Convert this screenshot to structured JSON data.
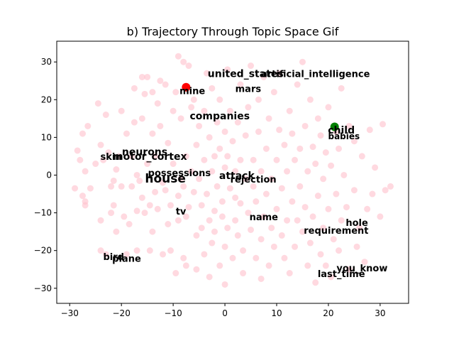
{
  "chart_data": {
    "type": "scatter",
    "title": "b) Trajectory Through Topic Space Gif",
    "xlabel": "",
    "ylabel": "",
    "xlim": [
      -32.5,
      35.5
    ],
    "ylim": [
      -34,
      35.5
    ],
    "xticks": [
      -30,
      -20,
      -10,
      0,
      10,
      20,
      30
    ],
    "yticks": [
      -30,
      -20,
      -10,
      0,
      10,
      20,
      30
    ],
    "grid": false,
    "colors": {
      "background_points": "#ffc0cb",
      "start_marker": "#ff0000",
      "end_marker": "#008000"
    },
    "background_points": [
      [
        -29.0,
        -3.5
      ],
      [
        -28.5,
        6.5
      ],
      [
        -28.0,
        4.0
      ],
      [
        -27.5,
        -5.5
      ],
      [
        -27.5,
        11.0
      ],
      [
        -27.0,
        1.0
      ],
      [
        -27.0,
        -7.0
      ],
      [
        -27.0,
        -8.0
      ],
      [
        -26.5,
        13.0
      ],
      [
        -26.0,
        -3.5
      ],
      [
        -25.0,
        3.0
      ],
      [
        -24.5,
        19.0
      ],
      [
        -24.0,
        -12.0
      ],
      [
        -24.0,
        8.0
      ],
      [
        -24.0,
        -20.0
      ],
      [
        -23.5,
        4.0
      ],
      [
        -23.0,
        16.0
      ],
      [
        -23.0,
        -21.0
      ],
      [
        -22.5,
        6.0
      ],
      [
        -22.0,
        -3.0
      ],
      [
        -22.0,
        -10.0
      ],
      [
        -21.5,
        -8.0
      ],
      [
        -21.5,
        -1.5
      ],
      [
        -21.0,
        -15.0
      ],
      [
        -21.0,
        1.5
      ],
      [
        -20.5,
        5.0
      ],
      [
        -20.0,
        17.0
      ],
      [
        -20.0,
        -3.0
      ],
      [
        -19.5,
        -11.0
      ],
      [
        -19.0,
        11.0
      ],
      [
        -19.0,
        -21.0
      ],
      [
        -18.5,
        -13.0
      ],
      [
        -18.0,
        -3.0
      ],
      [
        -18.0,
        5.0
      ],
      [
        -17.5,
        23.0
      ],
      [
        -17.5,
        14.0
      ],
      [
        -17.0,
        0.0
      ],
      [
        -17.0,
        -9.5
      ],
      [
        -17.0,
        -20.0
      ],
      [
        -16.5,
        -1.5
      ],
      [
        -16.0,
        26.0
      ],
      [
        -16.0,
        -6.0
      ],
      [
        -16.0,
        15.0
      ],
      [
        -15.5,
        21.5
      ],
      [
        -15.5,
        -10.0
      ],
      [
        -15.0,
        3.0
      ],
      [
        -15.0,
        26.0
      ],
      [
        -14.5,
        -8.0
      ],
      [
        -14.5,
        -20.0
      ],
      [
        -14.0,
        22.0
      ],
      [
        -14.0,
        11.0
      ],
      [
        -14.0,
        -15.0
      ],
      [
        -13.5,
        -4.5
      ],
      [
        -13.5,
        5.0
      ],
      [
        -13.0,
        19.0
      ],
      [
        -13.0,
        -9.0
      ],
      [
        -12.5,
        25.0
      ],
      [
        -12.5,
        13.0
      ],
      [
        -12.0,
        -2.0
      ],
      [
        -12.0,
        -21.0
      ],
      [
        -11.5,
        -4.0
      ],
      [
        -11.5,
        24.0
      ],
      [
        -11.0,
        8.5
      ],
      [
        -11.0,
        -13.0
      ],
      [
        -10.5,
        -20.0
      ],
      [
        -10.5,
        -8.0
      ],
      [
        -10.0,
        17.0
      ],
      [
        -10.0,
        3.0
      ],
      [
        -9.5,
        -26.0
      ],
      [
        -9.5,
        22.0
      ],
      [
        -9.0,
        -5.5
      ],
      [
        -9.0,
        -12.0
      ],
      [
        -9.0,
        31.5
      ],
      [
        -8.5,
        -1.0
      ],
      [
        -8.5,
        15.0
      ],
      [
        -8.0,
        30.0
      ],
      [
        -8.0,
        -3.0
      ],
      [
        -8.0,
        -22.0
      ],
      [
        -7.5,
        -11.0
      ],
      [
        -7.5,
        5.0
      ],
      [
        -7.5,
        -24.0
      ],
      [
        -7.0,
        29.0
      ],
      [
        -7.0,
        -8.5
      ],
      [
        -6.5,
        1.0
      ],
      [
        -6.5,
        18.0
      ],
      [
        -6.0,
        -4.5
      ],
      [
        -6.0,
        20.0
      ],
      [
        -5.5,
        -16.0
      ],
      [
        -5.5,
        8.0
      ],
      [
        -5.5,
        -25.0
      ],
      [
        -5.0,
        -1.0
      ],
      [
        -5.0,
        13.0
      ],
      [
        -4.5,
        -14.0
      ],
      [
        -4.5,
        -8.0
      ],
      [
        -4.0,
        4.0
      ],
      [
        -4.0,
        17.0
      ],
      [
        -4.0,
        -21.0
      ],
      [
        -3.5,
        27.0
      ],
      [
        -3.5,
        -5.0
      ],
      [
        -3.0,
        10.0
      ],
      [
        -3.0,
        -12.0
      ],
      [
        -3.0,
        -27.0
      ],
      [
        -2.5,
        1.0
      ],
      [
        -2.5,
        23.0
      ],
      [
        -2.5,
        -18.0
      ],
      [
        -2.0,
        -9.5
      ],
      [
        -2.0,
        5.0
      ],
      [
        -2.0,
        -15.0
      ],
      [
        -1.5,
        14.0
      ],
      [
        -1.5,
        -3.0
      ],
      [
        -1.0,
        7.0
      ],
      [
        -1.0,
        -24.0
      ],
      [
        -1.0,
        20.0
      ],
      [
        -0.5,
        -7.0
      ],
      [
        -0.5,
        -11.0
      ],
      [
        0.0,
        2.0
      ],
      [
        0.0,
        11.5
      ],
      [
        0.0,
        -19.0
      ],
      [
        0.0,
        -29.0
      ],
      [
        0.5,
        5.0
      ],
      [
        0.5,
        28.0
      ],
      [
        0.5,
        -14.0
      ],
      [
        1.0,
        -3.5
      ],
      [
        1.0,
        17.0
      ],
      [
        1.5,
        9.0
      ],
      [
        1.5,
        -22.0
      ],
      [
        2.0,
        -6.0
      ],
      [
        2.0,
        1.0
      ],
      [
        2.0,
        -12.0
      ],
      [
        2.5,
        14.0
      ],
      [
        2.5,
        -16.0
      ],
      [
        3.0,
        -7.5
      ],
      [
        3.0,
        24.0
      ],
      [
        3.0,
        4.0
      ],
      [
        3.5,
        -26.0
      ],
      [
        3.5,
        -20.0
      ],
      [
        4.0,
        -1.0
      ],
      [
        4.0,
        10.5
      ],
      [
        4.5,
        -10.0
      ],
      [
        4.5,
        18.0
      ],
      [
        5.0,
        -14.5
      ],
      [
        5.0,
        29.0
      ],
      [
        5.5,
        4.0
      ],
      [
        5.5,
        -3.0
      ],
      [
        6.0,
        -22.0
      ],
      [
        6.0,
        -7.0
      ],
      [
        6.5,
        11.5
      ],
      [
        6.5,
        20.0
      ],
      [
        7.0,
        1.0
      ],
      [
        7.0,
        -17.0
      ],
      [
        7.0,
        -27.5
      ],
      [
        7.5,
        26.0
      ],
      [
        7.5,
        -11.0
      ],
      [
        8.0,
        7.0
      ],
      [
        8.0,
        -5.0
      ],
      [
        8.5,
        15.0
      ],
      [
        8.5,
        -24.0
      ],
      [
        9.0,
        -1.0
      ],
      [
        9.0,
        -14.0
      ],
      [
        9.5,
        22.0
      ],
      [
        9.5,
        -19.0
      ],
      [
        10.0,
        4.0
      ],
      [
        10.0,
        -9.0
      ],
      [
        10.5,
        12.0
      ],
      [
        10.5,
        27.0
      ],
      [
        11.0,
        -3.5
      ],
      [
        11.0,
        -16.0
      ],
      [
        11.5,
        8.0
      ],
      [
        11.5,
        -22.0
      ],
      [
        12.0,
        -12.0
      ],
      [
        12.0,
        1.0
      ],
      [
        12.5,
        17.0
      ],
      [
        12.5,
        -26.0
      ],
      [
        13.0,
        -7.0
      ],
      [
        13.0,
        11.0
      ],
      [
        13.5,
        4.0
      ],
      [
        13.5,
        -19.0
      ],
      [
        14.0,
        -12.0
      ],
      [
        14.0,
        24.0
      ],
      [
        14.5,
        7.0
      ],
      [
        14.5,
        -3.0
      ],
      [
        15.0,
        30.0
      ],
      [
        15.0,
        -15.0
      ],
      [
        15.5,
        13.0
      ],
      [
        15.5,
        -8.5
      ],
      [
        16.0,
        -24.0
      ],
      [
        16.0,
        1.0
      ],
      [
        16.5,
        20.0
      ],
      [
        16.5,
        -18.0
      ],
      [
        17.0,
        7.5
      ],
      [
        17.0,
        -11.0
      ],
      [
        17.5,
        -28.5
      ],
      [
        17.5,
        3.0
      ],
      [
        18.0,
        -5.5
      ],
      [
        18.0,
        15.0
      ],
      [
        18.5,
        -21.0
      ],
      [
        18.5,
        10.5
      ],
      [
        19.0,
        -14.0
      ],
      [
        19.0,
        -1.0
      ],
      [
        19.5,
        6.0
      ],
      [
        19.5,
        -24.0
      ],
      [
        20.0,
        18.0
      ],
      [
        20.0,
        -9.0
      ],
      [
        20.5,
        2.5
      ],
      [
        20.5,
        -27.0
      ],
      [
        21.0,
        -17.0
      ],
      [
        21.5,
        11.5
      ],
      [
        21.5,
        -5.0
      ],
      [
        22.0,
        7.0
      ],
      [
        22.0,
        -20.0
      ],
      [
        22.5,
        23.0
      ],
      [
        22.5,
        -12.0
      ],
      [
        23.0,
        0.0
      ],
      [
        23.5,
        -8.5
      ],
      [
        24.0,
        13.0
      ],
      [
        24.0,
        -25.0
      ],
      [
        25.0,
        -4.0
      ],
      [
        25.0,
        9.0
      ],
      [
        25.5,
        -19.0
      ],
      [
        26.0,
        -14.0
      ],
      [
        26.5,
        5.0
      ],
      [
        27.0,
        -23.0
      ],
      [
        27.5,
        -9.0
      ],
      [
        28.0,
        12.0
      ],
      [
        28.5,
        -5.0
      ],
      [
        29.0,
        2.0
      ],
      [
        30.0,
        -11.0
      ],
      [
        30.5,
        13.5
      ],
      [
        31.0,
        -4.0
      ],
      [
        32.0,
        -3.0
      ]
    ],
    "start_marker": {
      "x": -7.5,
      "y": 23.3
    },
    "end_marker": {
      "x": 21.2,
      "y": 12.8
    },
    "words": [
      {
        "text": "united_states",
        "x": 4.0,
        "y": 26.0,
        "size": 14
      },
      {
        "text": "artificial_intelligence",
        "x": 17.5,
        "y": 26.0,
        "size": 13
      },
      {
        "text": "mine",
        "x": -6.3,
        "y": 21.5,
        "size": 13
      },
      {
        "text": "mars",
        "x": 4.5,
        "y": 22.0,
        "size": 13
      },
      {
        "text": "companies",
        "x": -1.0,
        "y": 14.8,
        "size": 14
      },
      {
        "text": "child",
        "x": 22.5,
        "y": 11.0,
        "size": 14
      },
      {
        "text": "babies",
        "x": 23.0,
        "y": 9.5,
        "size": 12
      },
      {
        "text": "neurons",
        "x": -15.5,
        "y": 5.3,
        "size": 14
      },
      {
        "text": "skin",
        "x": -22.0,
        "y": 4.0,
        "size": 13
      },
      {
        "text": "motor_cortex",
        "x": -14.5,
        "y": 4.0,
        "size": 14
      },
      {
        "text": "possessions",
        "x": -8.8,
        "y": -0.3,
        "size": 13
      },
      {
        "text": "attack",
        "x": 2.3,
        "y": -1.0,
        "size": 14
      },
      {
        "text": "rejection",
        "x": 5.5,
        "y": -2.0,
        "size": 13
      },
      {
        "text": "house",
        "x": -11.5,
        "y": -2.0,
        "size": 17
      },
      {
        "text": "tv",
        "x": -8.5,
        "y": -10.5,
        "size": 13
      },
      {
        "text": "name",
        "x": 7.5,
        "y": -12.0,
        "size": 13
      },
      {
        "text": "hole",
        "x": 25.5,
        "y": -13.5,
        "size": 13
      },
      {
        "text": "requirement",
        "x": 21.5,
        "y": -15.5,
        "size": 13
      },
      {
        "text": "bird",
        "x": -21.5,
        "y": -22.5,
        "size": 13
      },
      {
        "text": "plane",
        "x": -19.0,
        "y": -23.0,
        "size": 13
      },
      {
        "text": "you_know",
        "x": 26.5,
        "y": -25.5,
        "size": 13
      },
      {
        "text": "last_time",
        "x": 22.5,
        "y": -27.0,
        "size": 13
      }
    ]
  }
}
